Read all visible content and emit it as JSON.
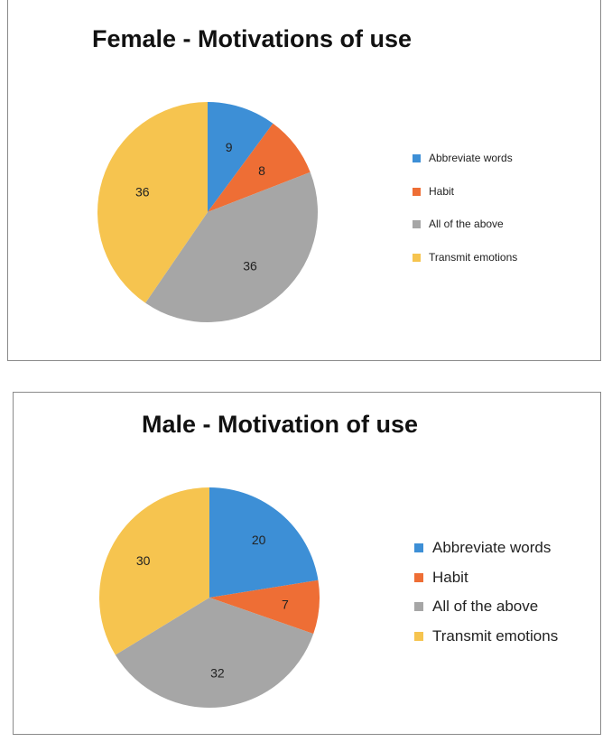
{
  "chart_data": [
    {
      "type": "pie",
      "title": "Female - Motivations of use",
      "categories": [
        "Abbreviate words",
        "Habit",
        "All of the above",
        "Transmit emotions"
      ],
      "values": [
        9,
        8,
        36,
        36
      ],
      "colors": [
        "#3d8fd6",
        "#ee6e35",
        "#a6a6a6",
        "#f6c44f"
      ],
      "data_labels": [
        "9",
        "8",
        "36",
        "36"
      ],
      "legend": "right"
    },
    {
      "type": "pie",
      "title": "Male - Motivation of use",
      "categories": [
        "Abbreviate words",
        "Habit",
        "All of the above",
        "Transmit emotions"
      ],
      "values": [
        20,
        7,
        32,
        30
      ],
      "colors": [
        "#3d8fd6",
        "#ee6e35",
        "#a6a6a6",
        "#f6c44f"
      ],
      "data_labels": [
        "20",
        "7",
        "32",
        "30"
      ],
      "legend": "right"
    }
  ]
}
